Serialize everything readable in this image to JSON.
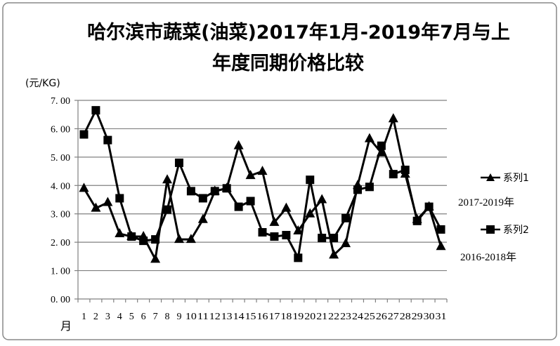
{
  "chart_data": {
    "type": "line",
    "title_lines": [
      "哈尔滨市蔬菜(油菜)2017年1月-2019年7月与上",
      "年度同期价格比较"
    ],
    "ylabel": "(元/KG)",
    "xlabel": "月",
    "ylim": [
      0,
      7
    ],
    "yticks": [
      "0. 00",
      "1. 00",
      "2. 00",
      "3. 00",
      "4. 00",
      "5. 00",
      "6. 00",
      "7. 00"
    ],
    "ytick_values": [
      0,
      1,
      2,
      3,
      4,
      5,
      6,
      7
    ],
    "grid": true,
    "legend_position": "right",
    "x": [
      1,
      2,
      3,
      4,
      5,
      6,
      7,
      8,
      9,
      10,
      11,
      12,
      13,
      14,
      15,
      16,
      17,
      18,
      19,
      20,
      21,
      22,
      23,
      24,
      25,
      26,
      27,
      28,
      29,
      30,
      31
    ],
    "series": [
      {
        "name": "系列1",
        "marker": "triangle",
        "period": "2017-2019年",
        "values": [
          3.9,
          3.2,
          3.4,
          2.3,
          2.2,
          2.2,
          1.4,
          4.2,
          2.1,
          2.1,
          2.8,
          3.8,
          3.9,
          5.4,
          4.35,
          4.5,
          2.7,
          3.2,
          2.4,
          3.0,
          3.5,
          1.55,
          1.95,
          4.0,
          5.65,
          5.15,
          6.35,
          4.4,
          2.8,
          3.25,
          1.85
        ]
      },
      {
        "name": "系列2",
        "marker": "square",
        "period": "2016-2018年",
        "values": [
          5.8,
          6.65,
          5.6,
          3.55,
          2.2,
          2.05,
          2.1,
          3.15,
          4.8,
          3.8,
          3.55,
          3.8,
          3.9,
          3.25,
          3.45,
          2.35,
          2.2,
          2.25,
          1.45,
          4.2,
          2.15,
          2.15,
          2.85,
          3.85,
          3.95,
          5.4,
          4.4,
          4.55,
          2.75,
          3.25,
          2.45
        ]
      }
    ],
    "colors": {
      "line": "#000000",
      "grid": "#808080"
    }
  }
}
